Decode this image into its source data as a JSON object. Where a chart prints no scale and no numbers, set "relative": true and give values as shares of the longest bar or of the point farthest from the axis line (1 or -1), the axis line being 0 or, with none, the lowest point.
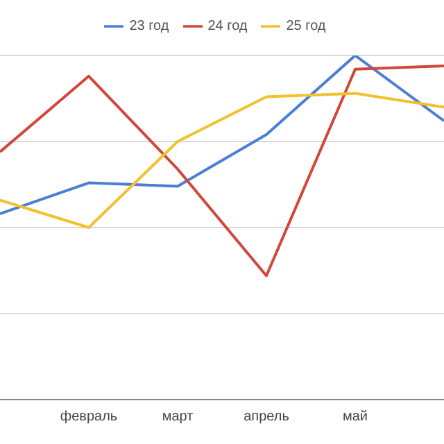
{
  "chart_data": {
    "type": "line",
    "relative": true,
    "categories": [
      null,
      "февраль",
      "март",
      "апрель",
      "май",
      null
    ],
    "series": [
      {
        "name": "23 год",
        "color": "#4a7fd4",
        "values": [
          0.54,
          0.63,
          0.62,
          0.77,
          1.0,
          0.81
        ]
      },
      {
        "name": "24 год",
        "color": "#d2473a",
        "values": [
          0.72,
          0.94,
          0.67,
          0.36,
          0.96,
          0.97
        ]
      },
      {
        "name": "25 год",
        "color": "#f2c12e",
        "values": [
          0.58,
          0.5,
          0.75,
          0.88,
          0.89,
          0.85
        ]
      }
    ],
    "grid": "y",
    "legend": "top",
    "marker": "none",
    "line_style": "solid"
  }
}
